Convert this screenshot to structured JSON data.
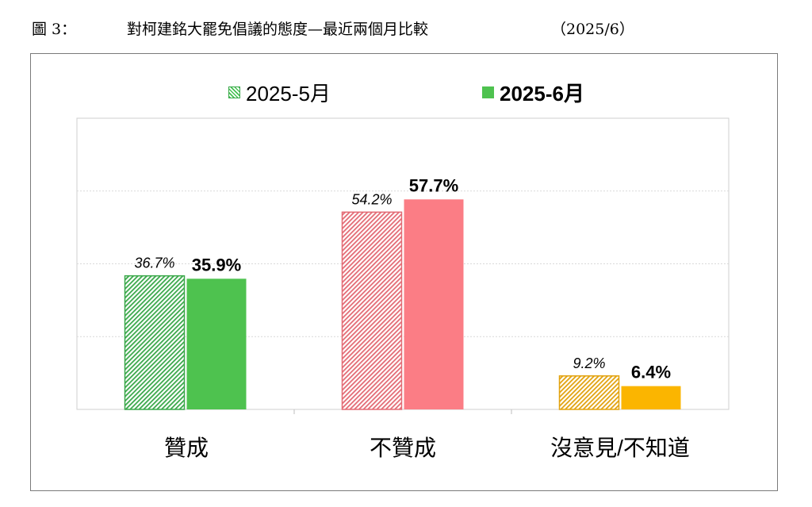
{
  "figure": {
    "label": "圖 3：",
    "title": "對柯建銘大罷免倡議的態度—最近兩個月比較",
    "date": "（2025/6）"
  },
  "chart_data": {
    "type": "bar",
    "categories": [
      "贊成",
      "不贊成",
      "沒意見/不知道"
    ],
    "series": [
      {
        "name": "2025-5月",
        "values": [
          36.7,
          54.2,
          9.2
        ],
        "labels": [
          "36.7%",
          "54.2%",
          "9.2%"
        ],
        "pattern": "hatched"
      },
      {
        "name": "2025-6月",
        "values": [
          35.9,
          57.7,
          6.4
        ],
        "labels": [
          "35.9%",
          "57.7%",
          "6.4%"
        ],
        "pattern": "solid"
      }
    ],
    "category_colors": {
      "may_fill": [
        "#4ec24f",
        "#f47d86",
        "#f5b51a"
      ],
      "may_stroke": [
        "#3aa84a",
        "#e36a74",
        "#e2a20e"
      ],
      "jun_fill": [
        "#4ec24f",
        "#fb7d85",
        "#fbb500"
      ]
    },
    "ylim": [
      0,
      80
    ],
    "gridlines": [
      20,
      40,
      60
    ],
    "legend_position": "top-center",
    "grid": true
  }
}
